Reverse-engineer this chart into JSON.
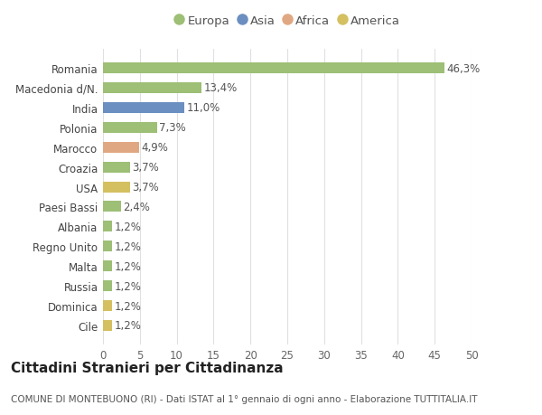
{
  "categories": [
    "Cile",
    "Dominica",
    "Russia",
    "Malta",
    "Regno Unito",
    "Albania",
    "Paesi Bassi",
    "USA",
    "Croazia",
    "Marocco",
    "Polonia",
    "India",
    "Macedonia d/N.",
    "Romania"
  ],
  "values": [
    1.2,
    1.2,
    1.2,
    1.2,
    1.2,
    1.2,
    2.4,
    3.7,
    3.7,
    4.9,
    7.3,
    11.0,
    13.4,
    46.3
  ],
  "labels": [
    "1,2%",
    "1,2%",
    "1,2%",
    "1,2%",
    "1,2%",
    "1,2%",
    "2,4%",
    "3,7%",
    "3,7%",
    "4,9%",
    "7,3%",
    "11,0%",
    "13,4%",
    "46,3%"
  ],
  "colors": [
    "#d4c060",
    "#d4c060",
    "#9dbf76",
    "#9dbf76",
    "#9dbf76",
    "#9dbf76",
    "#9dbf76",
    "#d4c060",
    "#9dbf76",
    "#e0a882",
    "#9dbf76",
    "#6a8fc0",
    "#9dbf76",
    "#9dbf76"
  ],
  "legend_items": [
    {
      "label": "Europa",
      "color": "#9dbf76"
    },
    {
      "label": "Asia",
      "color": "#6a8fc0"
    },
    {
      "label": "Africa",
      "color": "#e0a882"
    },
    {
      "label": "America",
      "color": "#d4c060"
    }
  ],
  "xlim": [
    0,
    50
  ],
  "xticks": [
    0,
    5,
    10,
    15,
    20,
    25,
    30,
    35,
    40,
    45,
    50
  ],
  "title": "Cittadini Stranieri per Cittadinanza",
  "subtitle": "COMUNE DI MONTEBUONO (RI) - Dati ISTAT al 1° gennaio di ogni anno - Elaborazione TUTTITALIA.IT",
  "bg_color": "#ffffff",
  "grid_color": "#e0e0e0",
  "bar_height": 0.55,
  "label_fontsize": 8.5,
  "tick_fontsize": 8.5,
  "title_fontsize": 11,
  "subtitle_fontsize": 7.5,
  "legend_fontsize": 9.5
}
